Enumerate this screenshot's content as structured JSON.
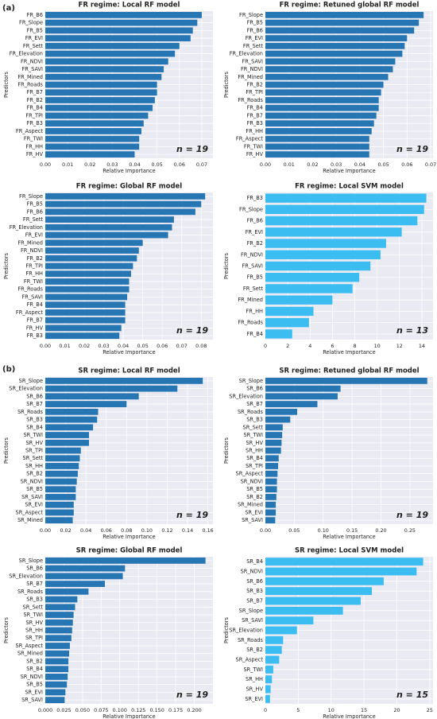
{
  "panel_labels": [
    "(a)",
    "(b)"
  ],
  "chart_data": [
    {
      "type": "bar",
      "orientation": "horizontal",
      "title": "FR regime: Local RF model",
      "annotation": "n = 19",
      "xlabel": "Relative Importance",
      "ylabel": "Predictors",
      "color": "#2776b4",
      "grid": true,
      "categories": [
        "FR_B6",
        "FR_Slope",
        "FR_B5",
        "FR_EVI",
        "FR_Sett",
        "FR_Elevation",
        "FR_NDVI",
        "FR_SAVI",
        "FR_Mined",
        "FR_Roads",
        "FR_B7",
        "FR_B2",
        "FR_B4",
        "FR_TPI",
        "FR_B3",
        "FR_Aspect",
        "FR_TWI",
        "FR_HH",
        "FR_HV"
      ],
      "values": [
        0.07,
        0.068,
        0.066,
        0.065,
        0.06,
        0.058,
        0.055,
        0.053,
        0.052,
        0.05,
        0.05,
        0.049,
        0.048,
        0.046,
        0.044,
        0.043,
        0.042,
        0.042,
        0.04
      ],
      "xlim": [
        0,
        0.075
      ],
      "xticks": [
        {
          "value": 0,
          "label": "0.00"
        },
        0.01,
        0.02,
        0.03,
        0.04,
        0.05,
        0.06,
        0.07
      ]
    },
    {
      "type": "bar",
      "orientation": "horizontal",
      "title": "FR regime: Retuned global RF model",
      "annotation": "n = 19",
      "xlabel": "Relative Importance",
      "ylabel": "Predictors",
      "color": "#2776b4",
      "grid": true,
      "categories": [
        "FR_Slope",
        "FR_B5",
        "FR_B6",
        "FR_EVI",
        "FR_Sett",
        "FR_Elevation",
        "FR_SAVI",
        "FR_NDVI",
        "FR_Mined",
        "FR_B2",
        "FR_TPI",
        "FR_Roads",
        "FR_B4",
        "FR_B7",
        "FR_B3",
        "FR_HH",
        "FR_Aspect",
        "FR_TWI",
        "FR_HV"
      ],
      "values": [
        0.067,
        0.065,
        0.063,
        0.06,
        0.059,
        0.058,
        0.055,
        0.054,
        0.052,
        0.05,
        0.049,
        0.048,
        0.048,
        0.047,
        0.046,
        0.045,
        0.044,
        0.044,
        0.044
      ],
      "xlim": [
        0,
        0.071
      ],
      "xticks": [
        {
          "value": 0,
          "label": "0.00"
        },
        0.01,
        0.02,
        0.03,
        0.04,
        0.05,
        0.06,
        0.07
      ]
    },
    {
      "type": "bar",
      "orientation": "horizontal",
      "title": "FR regime: Global RF model",
      "annotation": "n = 19",
      "xlabel": "Relative Importance",
      "ylabel": "Predictors",
      "color": "#2776b4",
      "grid": true,
      "categories": [
        "FR_Slope",
        "FR_B5",
        "FR_B6",
        "FR_Sett",
        "FR_Elevation",
        "FR_EVI",
        "FR_Mined",
        "FR_NDVI",
        "FR_B2",
        "FR_TPI",
        "FR_HH",
        "FR_TWI",
        "FR_Roads",
        "FR_SAVI",
        "FR_B4",
        "FR_Aspect",
        "FR_B7",
        "FR_HV",
        "FR_B3"
      ],
      "values": [
        0.082,
        0.08,
        0.077,
        0.066,
        0.065,
        0.063,
        0.05,
        0.048,
        0.047,
        0.045,
        0.044,
        0.043,
        0.043,
        0.042,
        0.041,
        0.041,
        0.041,
        0.039,
        0.038
      ],
      "xlim": [
        0,
        0.086
      ],
      "xticks": [
        {
          "value": 0,
          "label": "0.00"
        },
        0.01,
        0.02,
        0.03,
        0.04,
        0.05,
        0.06,
        0.07,
        0.08
      ]
    },
    {
      "type": "bar",
      "orientation": "horizontal",
      "title": "FR regime: Local SVM model",
      "annotation": "n = 13",
      "xlabel": "Relative Importance",
      "ylabel": "Predictors",
      "color": "#3bbdf2",
      "grid": true,
      "categories": [
        "FR_B3",
        "FR_Slope",
        "FR_B6",
        "FR_EVI",
        "FR_B2",
        "FR_NDVI",
        "FR_SAVI",
        "FR_B5",
        "FR_Sett",
        "FR_Mined",
        "FR_HH",
        "FR_Roads",
        "FR_B4"
      ],
      "values": [
        14.4,
        14.2,
        13.6,
        12.2,
        10.8,
        10.3,
        9.4,
        8.4,
        7.8,
        6.0,
        4.3,
        3.9,
        2.4
      ],
      "xlim": [
        0,
        15
      ],
      "xticks": [
        0,
        2,
        4,
        6,
        8,
        10,
        12,
        14
      ]
    },
    {
      "type": "bar",
      "orientation": "horizontal",
      "title": "SR regime: Local RF model",
      "annotation": "n = 19",
      "xlabel": "Relative Importance",
      "ylabel": "Predictors",
      "color": "#2776b4",
      "grid": true,
      "categories": [
        "SR_Slope",
        "SR_Elevation",
        "SR_B6",
        "SR_B7",
        "SR_Roads",
        "SR_B3",
        "SR_B4",
        "SR_TWI",
        "SR_HV",
        "SR_TPI",
        "SR_Sett",
        "SR_HH",
        "SR_B2",
        "SR_NDVI",
        "SR_B5",
        "SR_SAVI",
        "SR_EVI",
        "SR_Aspect",
        "SR_Mined"
      ],
      "values": [
        0.155,
        0.13,
        0.092,
        0.08,
        0.052,
        0.051,
        0.047,
        0.043,
        0.043,
        0.035,
        0.034,
        0.033,
        0.032,
        0.031,
        0.03,
        0.03,
        0.028,
        0.028,
        0.027
      ],
      "xlim": [
        0,
        0.165
      ],
      "xticks": [
        {
          "value": 0,
          "label": "0.00"
        },
        0.02,
        0.04,
        0.06,
        0.08,
        {
          "value": 0.1,
          "label": "0.10"
        },
        0.12,
        0.14,
        0.16
      ]
    },
    {
      "type": "bar",
      "orientation": "horizontal",
      "title": "SR regime: Retuned global RF model",
      "annotation": "n = 19",
      "xlabel": "Relative Importance",
      "ylabel": "Predictors",
      "color": "#2776b4",
      "grid": true,
      "categories": [
        "SR_Slope",
        "SR_B6",
        "SR_Elevation",
        "SR_B7",
        "SR_Roads",
        "SR_B3",
        "SR_Sett",
        "SR_TWI",
        "SR_HV",
        "SR_HH",
        "SR_B4",
        "SR_TPI",
        "SR_Aspect",
        "SR_NDVI",
        "SR_B5",
        "SR_B2",
        "SR_Mined",
        "SR_EVI",
        "SR_SAVI"
      ],
      "values": [
        0.28,
        0.13,
        0.125,
        0.09,
        0.055,
        0.043,
        0.03,
        0.029,
        0.028,
        0.027,
        0.023,
        0.022,
        0.021,
        0.02,
        0.02,
        0.019,
        0.018,
        0.018,
        0.017
      ],
      "xlim": [
        0,
        0.29
      ],
      "xticks": [
        {
          "value": 0,
          "label": "0.00"
        },
        0.05,
        {
          "value": 0.1,
          "label": "0.10"
        },
        0.15,
        {
          "value": 0.2,
          "label": "0.20"
        },
        0.25
      ]
    },
    {
      "type": "bar",
      "orientation": "horizontal",
      "title": "SR regime: Global RF model",
      "annotation": "n = 19",
      "xlabel": "Relative Importance",
      "ylabel": "Predictors",
      "color": "#2776b4",
      "grid": true,
      "categories": [
        "SR_Slope",
        "SR_B6",
        "SR_Elevation",
        "SR_B7",
        "SR_Roads",
        "SR_B3",
        "SR_Sett",
        "SR_TWI",
        "SR_HV",
        "SR_HH",
        "SR_TPI",
        "SR_Aspect",
        "SR_Mined",
        "SR_B2",
        "SR_B4",
        "SR_NDVI",
        "SR_B5",
        "SR_EVI",
        "SR_SAVI"
      ],
      "values": [
        0.215,
        0.107,
        0.104,
        0.08,
        0.058,
        0.043,
        0.04,
        0.038,
        0.037,
        0.036,
        0.035,
        0.033,
        0.032,
        0.031,
        0.031,
        0.03,
        0.029,
        0.027,
        0.026
      ],
      "xlim": [
        0,
        0.225
      ],
      "xticks": [
        {
          "value": 0,
          "label": "0.000"
        },
        0.025,
        {
          "value": 0.05,
          "label": "0.050"
        },
        0.075,
        {
          "value": 0.1,
          "label": "0.100"
        },
        0.125,
        {
          "value": 0.15,
          "label": "0.150"
        },
        0.175,
        {
          "value": 0.2,
          "label": "0.200"
        }
      ]
    },
    {
      "type": "bar",
      "orientation": "horizontal",
      "title": "SR regime: Local SVM model",
      "annotation": "n = 15",
      "xlabel": "Relative Importance",
      "ylabel": "Predictors",
      "color": "#3bbdf2",
      "grid": true,
      "categories": [
        "SR_B4",
        "SR_NDVI",
        "SR_B6",
        "SR_B3",
        "SR_B7",
        "SR_Slope",
        "SR_SAVI",
        "SR_Elevation",
        "SR_Roads",
        "SR_B2",
        "SR_Aspect",
        "SR_TWI",
        "SR_HH",
        "SR_HV",
        "SR_EVI"
      ],
      "values": [
        24.0,
        23.0,
        18.0,
        16.2,
        14.5,
        11.8,
        7.3,
        4.8,
        2.7,
        2.5,
        2.1,
        1.2,
        1.0,
        0.8,
        0.7
      ],
      "xlim": [
        0,
        25.5
      ],
      "xticks": [
        0,
        5,
        10,
        15,
        20,
        25
      ]
    }
  ]
}
